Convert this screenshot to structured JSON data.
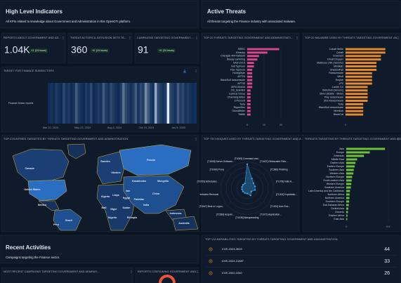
{
  "sections": [
    {
      "title": "High Level Indicators",
      "subtitle": "All KPIs related to knowledge about Government and Administration in this OpenCTI platform."
    },
    {
      "title": "Active Threats",
      "subtitle": "All threats targeting the Finance industry with associated malware."
    },
    {
      "title": "Recent Activities",
      "subtitle": "Campaigns targeting the Finance sector."
    }
  ],
  "kpis": [
    {
      "title": "REPORTS ABOUT GOVERNMENT AND AD...",
      "value": "1.04K",
      "delta": "+1",
      "period": "(24 hours)"
    },
    {
      "title": "THREAT ACTORS & INTRUSION SETS TA...",
      "value": "360",
      "delta": "+0",
      "period": "(24 hours)"
    },
    {
      "title": "CAMPAIGNS TARGETING GOVERNMENT ...",
      "value": "91",
      "delta": "+0",
      "period": "(24 hours)"
    }
  ],
  "chart_data": [
    {
      "type": "heatmap",
      "title": "TARGET FOR FINANCE SUBSECTORS",
      "series_name": "Finance Sector reports",
      "color": "#2f78d0",
      "vlim": [
        0,
        10
      ],
      "xticks": [
        "Mar 10, 2024",
        "May 23, 2024",
        "Aug 5, 2024",
        "Oct 19, 2024",
        "Jan 5, 2025"
      ],
      "values": [
        1,
        2,
        1,
        3,
        2,
        1,
        4,
        2,
        3,
        1,
        2,
        5,
        3,
        2,
        1,
        3,
        2,
        4,
        1,
        2,
        3,
        2,
        5,
        3,
        2,
        4,
        3,
        2,
        1,
        3,
        6,
        4,
        3,
        2,
        3,
        5,
        2,
        4,
        3,
        7,
        5,
        3,
        2,
        8,
        4,
        3,
        2,
        3,
        10,
        4,
        3,
        2,
        5,
        3,
        4,
        2,
        3,
        2,
        1,
        2
      ]
    },
    {
      "type": "hbar",
      "title": "TOP 20 THREATS TARGETING GOVERNMENT AND ADMINISTRATI...",
      "color": "#d9468a",
      "categories": [
        "BRSC",
        "Kimsuky",
        "Chengdu 404 Network",
        "Sleepy Lamming",
        "SAS-D2LS",
        "Volt Typhoon",
        "Flax Typhoon",
        "HoneyMyte",
        "APT29",
        "BlackSuit ransomware",
        "APT33",
        "ZIRCONIUM",
        "Cl0_Scientist",
        "Lazarus Group",
        "Charming Kitten",
        "Z-Percent",
        "Turla",
        "RipperSec",
        "GhostWriter",
        "TA866"
      ],
      "values": [
        19,
        12,
        7,
        6,
        4,
        4,
        3,
        3,
        3,
        3,
        3,
        3,
        2,
        2,
        2,
        2,
        2,
        2,
        2,
        2
      ],
      "xlim": [
        0,
        25
      ],
      "xticks": [
        0,
        10,
        20
      ]
    },
    {
      "type": "hbar",
      "title": "TOP 20 MALWARE USED BY THREATS TARGETING GOVERNMENT AN...",
      "color": "#e8892b",
      "categories": [
        "Cobalt Strike",
        "Cobalt",
        "Covenant",
        "Ghost Dropper",
        "Malicious LNK (Generic)",
        "Mimikatz",
        "ShadowPad",
        "Ransomware",
        "Wevtl",
        "Empire",
        "LPZ",
        "Locker 3.0",
        "Webshell (Generic)",
        "Sliver (Stable - Sliver)",
        "Play ransomware",
        "3XZ Ransomware",
        "Turla",
        "BlackSuit ransomware",
        "Mimilock",
        "BlackCat"
      ],
      "values": [
        9,
        9,
        8,
        8,
        7,
        7,
        7,
        6,
        6,
        6,
        6,
        5,
        5,
        5,
        5,
        5,
        4,
        4,
        4,
        4
      ],
      "xlim": [
        0,
        10
      ],
      "xticks": [
        0
      ]
    },
    {
      "type": "map",
      "title": "TOP COUNTRIES TARGETED BY THREATS TARGETING GOVERNMENT AND ADMINISTRATION",
      "countries": [
        "Canada",
        "United States",
        "Mexico",
        "Brazil",
        "Peru",
        "Russia",
        "China",
        "India",
        "Kazakhstan",
        "Iran",
        "Algeria",
        "Libya",
        "Egypt",
        "Mali",
        "Niger",
        "Sudan",
        "Nigeria",
        "Ethiopia",
        "Ukraine",
        "Mongolia",
        "Sweden",
        "Pakistan",
        "Australia",
        "Indonesia"
      ]
    },
    {
      "type": "radar",
      "title": "TOP TECHNIQUES USED BY THREATS TARGETING GOVERNMENT AND A...",
      "color": "#3aa0e8",
      "categories": [
        "[T1059] Command and...",
        "[T1027] Obfuscated Files...",
        "[T1566] Phishing",
        "[T1078] Valid A...",
        "[T1203] Exploitatio...",
        "[T1204] User Exe...",
        "[T1071] Application...",
        "[T1036] Masquerading",
        "[T1583] Acquire...",
        "[T1547] Boot or Logon...",
        "Indicator Removal",
        "[T1053] Scheduled...",
        "[T1090] Proxy",
        "[T1505] Server Software..."
      ],
      "values": [
        9,
        4,
        3,
        3,
        3,
        2,
        3,
        2,
        2,
        2,
        2,
        2,
        2,
        2
      ],
      "rlim": [
        0,
        10
      ]
    },
    {
      "type": "hbar",
      "title": "THREATS TARGETING BY THREATS TARGETING GOVERNMENT AND ADMINI...",
      "color": "#6fbf3a",
      "categories": [
        "Asia",
        "Europe",
        "Americas",
        "Middle East",
        "Eastern Asia",
        "Eastern Europe",
        "Southern Asia",
        "Western Asia",
        "Northern Europe",
        "South-eastern Asia",
        "Western Europe",
        "Southern America",
        "Latin America and the Caribbean",
        "Northern Africa",
        "Northern America",
        "Southern Europe",
        "Sub-Saharan Africa",
        "Central Asia",
        "Oceania",
        "Eastern Africa",
        "East Asia"
      ],
      "values": [
        4600,
        2800,
        2100,
        1300,
        1100,
        1000,
        900,
        850,
        700,
        650,
        600,
        550,
        450,
        400,
        380,
        350,
        300,
        250,
        200,
        150,
        120
      ],
      "xlim": [
        0,
        5000
      ],
      "xticks": [
        0,
        {
          "value": 5000,
          "label": "5 K"
        }
      ]
    }
  ],
  "vulnerabilities": {
    "title": "TOP VULNERABILITIES TARGETED BY THREATS TARGETING GOVERNMENT AND ADMINISTRATION",
    "rows": [
      {
        "name": "CVE-2023-3519",
        "count": 44
      },
      {
        "name": "CVE-2024-21887",
        "count": 33
      },
      {
        "name": "CVE-2022-1040",
        "count": 26
      }
    ]
  },
  "bottom_panels": [
    "MOST RECENT CAMPAIGNS TARGETING GOVERNMENT AND ADMINIS...",
    "REPORTS CONTAINING GOVERNMENT AND..."
  ]
}
